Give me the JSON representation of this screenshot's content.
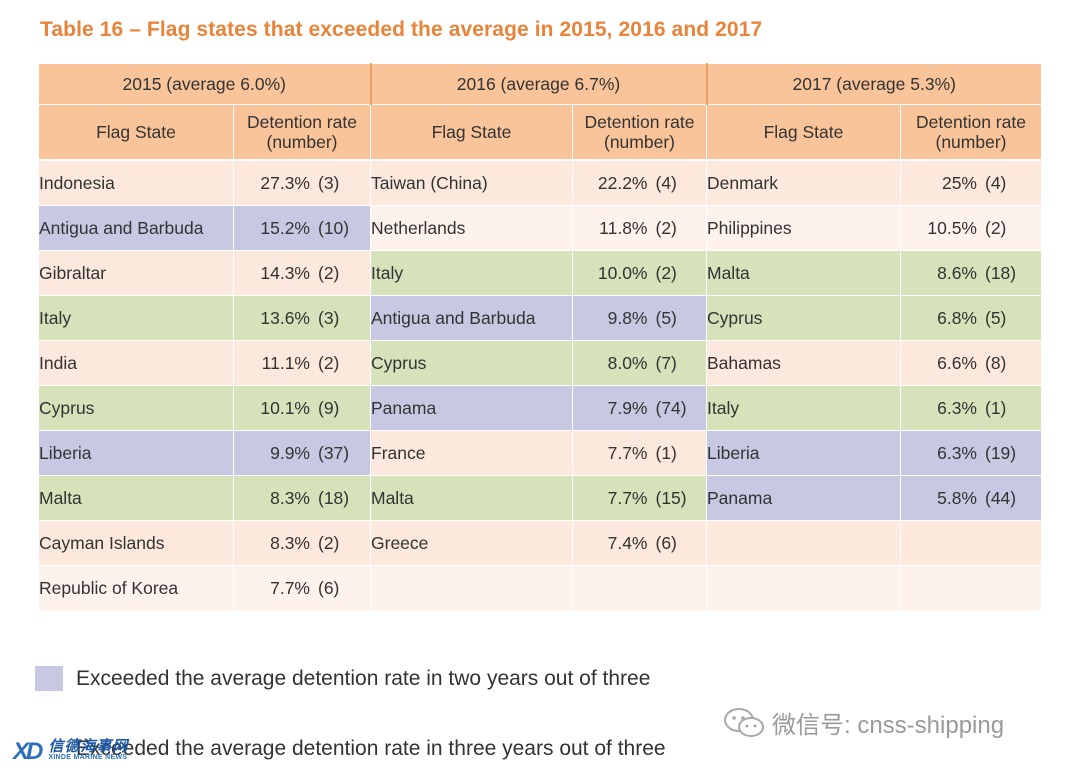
{
  "title": "Table 16 – Flag states that exceeded the average in 2015, 2016 and 2017",
  "years": [
    "2015 (average 6.0%)",
    "2016 (average 6.7%)",
    "2017 (average 5.3%)"
  ],
  "col_headers": {
    "state": "Flag State",
    "rate_line1": "Detention rate",
    "rate_line2": "(number)"
  },
  "rows": [
    {
      "c2015": {
        "state": "Indonesia",
        "pct": "27.3%",
        "num": "(3)",
        "bg": "peach"
      },
      "c2016": {
        "state": "Taiwan (China)",
        "pct": "22.2%",
        "num": "(4)",
        "bg": "peach"
      },
      "c2017": {
        "state": "Denmark",
        "pct": "25%",
        "num": "(4)",
        "bg": "peach"
      }
    },
    {
      "c2015": {
        "state": "Antigua and Barbuda",
        "pct": "15.2%",
        "num": "(10)",
        "bg": "purple"
      },
      "c2016": {
        "state": "Netherlands",
        "pct": "11.8%",
        "num": "(2)",
        "bg": "light"
      },
      "c2017": {
        "state": "Philippines",
        "pct": "10.5%",
        "num": "(2)",
        "bg": "light"
      }
    },
    {
      "c2015": {
        "state": "Gibraltar",
        "pct": "14.3%",
        "num": "(2)",
        "bg": "peach"
      },
      "c2016": {
        "state": "Italy",
        "pct": "10.0%",
        "num": "(2)",
        "bg": "green"
      },
      "c2017": {
        "state": "Malta",
        "pct": "8.6%",
        "num": "(18)",
        "bg": "green"
      }
    },
    {
      "c2015": {
        "state": "Italy",
        "pct": "13.6%",
        "num": "(3)",
        "bg": "green"
      },
      "c2016": {
        "state": "Antigua and Barbuda",
        "pct": "9.8%",
        "num": "(5)",
        "bg": "purple"
      },
      "c2017": {
        "state": "Cyprus",
        "pct": "6.8%",
        "num": "(5)",
        "bg": "green"
      }
    },
    {
      "c2015": {
        "state": "India",
        "pct": "11.1%",
        "num": "(2)",
        "bg": "peach"
      },
      "c2016": {
        "state": "Cyprus",
        "pct": "8.0%",
        "num": "(7)",
        "bg": "green"
      },
      "c2017": {
        "state": "Bahamas",
        "pct": "6.6%",
        "num": "(8)",
        "bg": "peach"
      }
    },
    {
      "c2015": {
        "state": "Cyprus",
        "pct": "10.1%",
        "num": "(9)",
        "bg": "green"
      },
      "c2016": {
        "state": "Panama",
        "pct": "7.9%",
        "num": "(74)",
        "bg": "purple"
      },
      "c2017": {
        "state": "Italy",
        "pct": "6.3%",
        "num": "(1)",
        "bg": "green"
      }
    },
    {
      "c2015": {
        "state": "Liberia",
        "pct": "9.9%",
        "num": "(37)",
        "bg": "purple"
      },
      "c2016": {
        "state": "France",
        "pct": "7.7%",
        "num": "(1)",
        "bg": "peach"
      },
      "c2017": {
        "state": "Liberia",
        "pct": "6.3%",
        "num": "(19)",
        "bg": "purple"
      }
    },
    {
      "c2015": {
        "state": "Malta",
        "pct": "8.3%",
        "num": "(18)",
        "bg": "green"
      },
      "c2016": {
        "state": "Malta",
        "pct": "7.7%",
        "num": "(15)",
        "bg": "green"
      },
      "c2017": {
        "state": "Panama",
        "pct": "5.8%",
        "num": "(44)",
        "bg": "purple"
      }
    },
    {
      "c2015": {
        "state": "Cayman Islands",
        "pct": "8.3%",
        "num": "(2)",
        "bg": "peach"
      },
      "c2016": {
        "state": "Greece",
        "pct": "7.4%",
        "num": "(6)",
        "bg": "peach"
      },
      "c2017": {
        "state": "",
        "pct": "",
        "num": "",
        "bg": "peach"
      }
    },
    {
      "c2015": {
        "state": "Republic of Korea",
        "pct": "7.7%",
        "num": "(6)",
        "bg": "light"
      },
      "c2016": {
        "state": "",
        "pct": "",
        "num": "",
        "bg": "light"
      },
      "c2017": {
        "state": "",
        "pct": "",
        "num": "",
        "bg": "light"
      }
    }
  ],
  "legend": [
    {
      "text": "Exceeded the average detention rate in two years out of three",
      "color": "#c7c9e3"
    },
    {
      "text": "Exceeded the average detention rate in three years out of three",
      "color": "#d5e2ba"
    }
  ],
  "logo": {
    "mark": "XD",
    "name_cn": "信德海事网",
    "name_en": "XINDE MARINE NEWS"
  },
  "watermark": "微信号: cnss-shipping",
  "colors": {
    "title": "#e8833a",
    "header_bg": "#f9c49a",
    "peach": "#fce8dc",
    "light": "#fdf2ec",
    "purple": "#c7c9e3",
    "green": "#d5e2ba"
  }
}
